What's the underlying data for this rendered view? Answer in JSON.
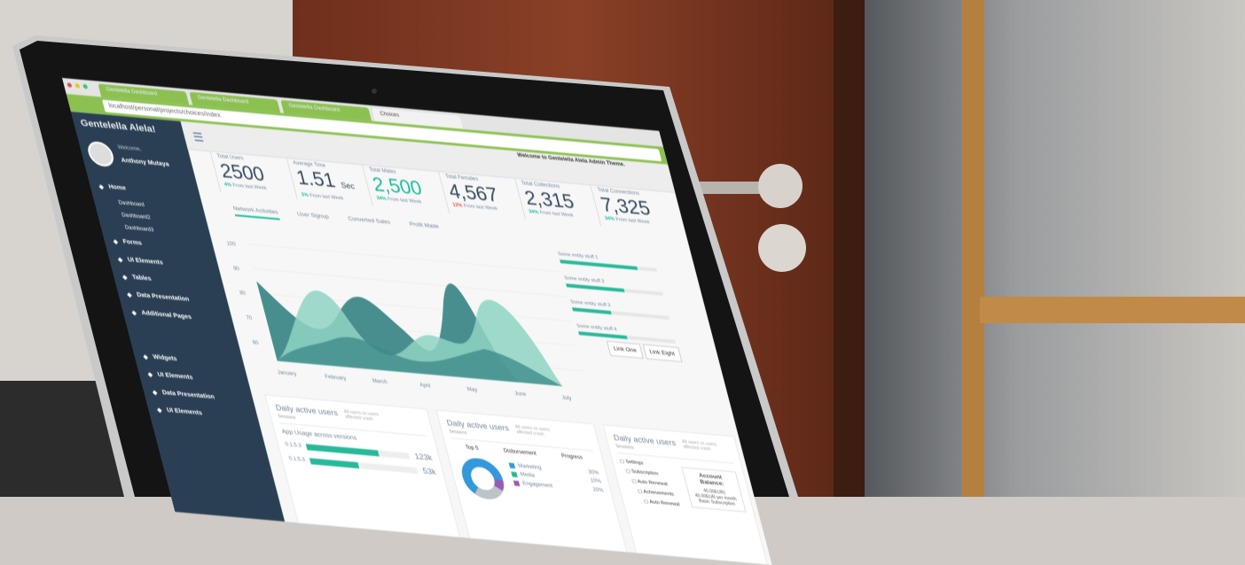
{
  "browser": {
    "tabs": [
      "Gentelella Dashboard",
      "Gentelella Dashboard",
      "Gentelella Dashboard",
      "Choices"
    ],
    "url": "localhost/personal/projects/choices/index"
  },
  "sidebar": {
    "brand": "Gentelella Alela!",
    "welcome": "Welcome,",
    "user": "Anthony Mutaya",
    "items": [
      {
        "label": "Home",
        "sub": false
      },
      {
        "label": "Dashboard",
        "sub": true
      },
      {
        "label": "Dashboard2",
        "sub": true
      },
      {
        "label": "Dashboard3",
        "sub": true
      },
      {
        "label": "Forms",
        "sub": false
      },
      {
        "label": "UI Elements",
        "sub": false
      },
      {
        "label": "Tables",
        "sub": false
      },
      {
        "label": "Data Presentation",
        "sub": false
      },
      {
        "label": "Additional Pages",
        "sub": false
      },
      {
        "label": "Widgets",
        "sub": false
      },
      {
        "label": "UI Elements",
        "sub": false
      },
      {
        "label": "Data Presentation",
        "sub": false
      },
      {
        "label": "UI Elements",
        "sub": false
      }
    ]
  },
  "header": {
    "welcome": "Welcome to Gentelella Alela Admin Theme."
  },
  "stats": [
    {
      "label": "Total Users",
      "value": "2500",
      "unit": "",
      "change": "4%",
      "note": "From last Week",
      "trend": "up"
    },
    {
      "label": "Average Time",
      "value": "1.51",
      "unit": "Sec",
      "change": "3%",
      "note": "From last Week",
      "trend": "up"
    },
    {
      "label": "Total Males",
      "value": "2,500",
      "unit": "",
      "change": "34%",
      "note": "From last Week",
      "trend": "up"
    },
    {
      "label": "Total Females",
      "value": "4,567",
      "unit": "",
      "change": "12%",
      "note": "From last Week",
      "trend": "down"
    },
    {
      "label": "Total Collections",
      "value": "2,315",
      "unit": "",
      "change": "34%",
      "note": "From last Week",
      "trend": "up"
    },
    {
      "label": "Total Connections",
      "value": "7,325",
      "unit": "",
      "change": "34%",
      "note": "From last Week",
      "trend": "up"
    }
  ],
  "chart_tabs": [
    "Network Activities",
    "User Signup",
    "Converted Sales",
    "Profit Made"
  ],
  "chart": {
    "yticks": [
      "100",
      "90",
      "80",
      "70",
      "60"
    ],
    "months": [
      "January",
      "February",
      "March",
      "April",
      "May",
      "June",
      "July"
    ],
    "colors": [
      "#2a7b7b",
      "#8fd3c3",
      "#3f8c8c"
    ]
  },
  "progress": [
    {
      "label": "Some entity stuff 1",
      "value": 0.8
    },
    {
      "label": "Some entity stuff 3",
      "value": 0.6
    },
    {
      "label": "Some entity stuff 3",
      "value": 0.4
    },
    {
      "label": "Some entity stuff 4",
      "value": 0.5
    }
  ],
  "links": [
    "Link One",
    "Link Eight"
  ],
  "panels": [
    {
      "title": "Daily active users",
      "note": "All users vs users affected crash",
      "sub": "Sessions",
      "heading": "App Usage across versions",
      "rows": [
        {
          "label": "0.1.5.3",
          "value": "123k",
          "fill": 0.7
        },
        {
          "label": "0.1.5.3",
          "value": "53k",
          "fill": 0.45
        }
      ]
    },
    {
      "title": "Daily active users",
      "note": "All users vs users affected crash",
      "sub": "Sessions",
      "cols": [
        "Top 5",
        "Disbursement",
        "Progress"
      ],
      "legend": [
        {
          "label": "Marketing",
          "value": "30%",
          "color": "#3498db"
        },
        {
          "label": "Media",
          "value": "10%",
          "color": "#26b99a"
        },
        {
          "label": "Engagement",
          "value": "20%",
          "color": "#9b59b6"
        }
      ]
    },
    {
      "title": "Daily active users",
      "note": "All users vs users affected crash",
      "sub": "Sessions",
      "items": [
        "Settings",
        "Subscription",
        "Auto Renewal",
        "Achievements",
        "Auto Renewal"
      ],
      "account": {
        "title": "Account Balance:",
        "line1": "40.00EUR)",
        "line2": "40.00EUR per month",
        "line3": "Basic Subscription"
      }
    }
  ]
}
